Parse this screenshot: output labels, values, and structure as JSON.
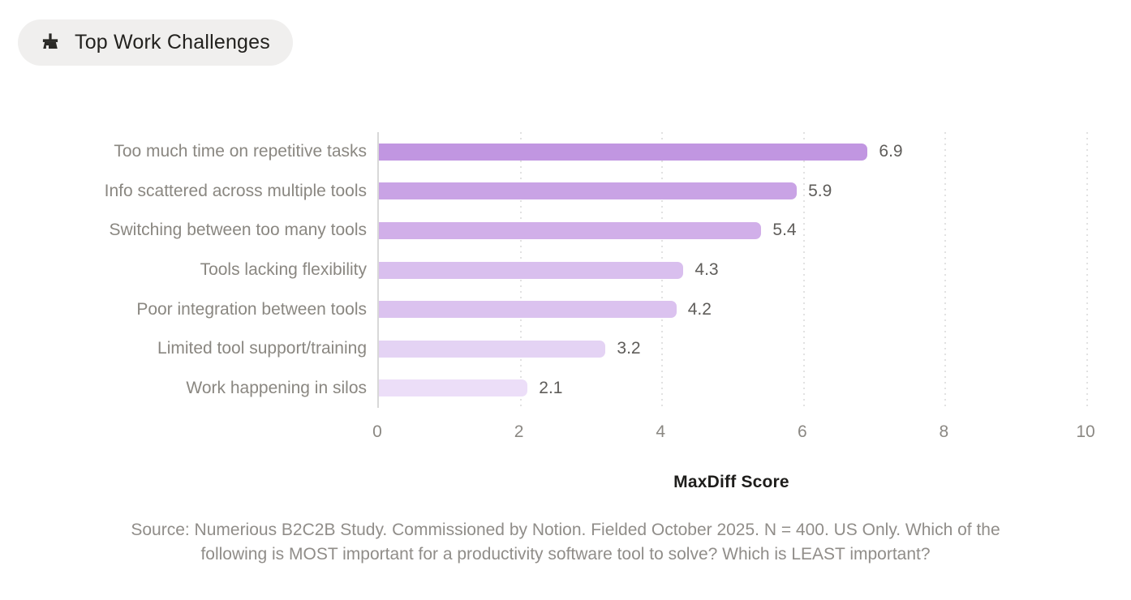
{
  "header": {
    "title": "Top Work Challenges",
    "icon": "broom-icon"
  },
  "chart_data": {
    "type": "bar",
    "orientation": "horizontal",
    "title": "Top Work Challenges",
    "categories": [
      "Too much time on repetitive tasks",
      "Info scattered across multiple tools",
      "Switching between too many tools",
      "Tools lacking flexibility",
      "Poor integration between tools",
      "Limited tool support/training",
      "Work happening in silos"
    ],
    "values": [
      6.9,
      5.9,
      5.4,
      4.3,
      4.2,
      3.2,
      2.1
    ],
    "value_labels": [
      "6.9",
      "5.9",
      "5.4",
      "4.3",
      "4.2",
      "3.2",
      "2.1"
    ],
    "xlabel": "MaxDiff Score",
    "xlim": [
      0,
      10
    ],
    "xticks": [
      0,
      2,
      4,
      6,
      8,
      10
    ],
    "grid": "vertical-dotted-at-nonzero-ticks",
    "legend": "none",
    "bar_colors": [
      "#c196e1",
      "#c9a3e5",
      "#d1afe9",
      "#d9bfee",
      "#dbc2ef",
      "#e4d3f4",
      "#ecdef8"
    ]
  },
  "source": {
    "line1": "Source: Numerious B2C2B Study. Commissioned by Notion. Fielded October 2025. N = 400. US Only. Which of the",
    "line2": "following is MOST important for a productivity software tool to solve? Which is LEAST important?"
  },
  "colors": {
    "pill_bg": "#f0efee",
    "title_text": "#23221f",
    "category_label": "#8a8781",
    "value_label": "#5f5d5a",
    "tick_label": "#8b8883",
    "axis_line": "#d8d8d8",
    "gridline": "#e2e2e2",
    "xlabel_text": "#1e1d1b",
    "source_text": "#908d89",
    "background": "#ffffff"
  }
}
